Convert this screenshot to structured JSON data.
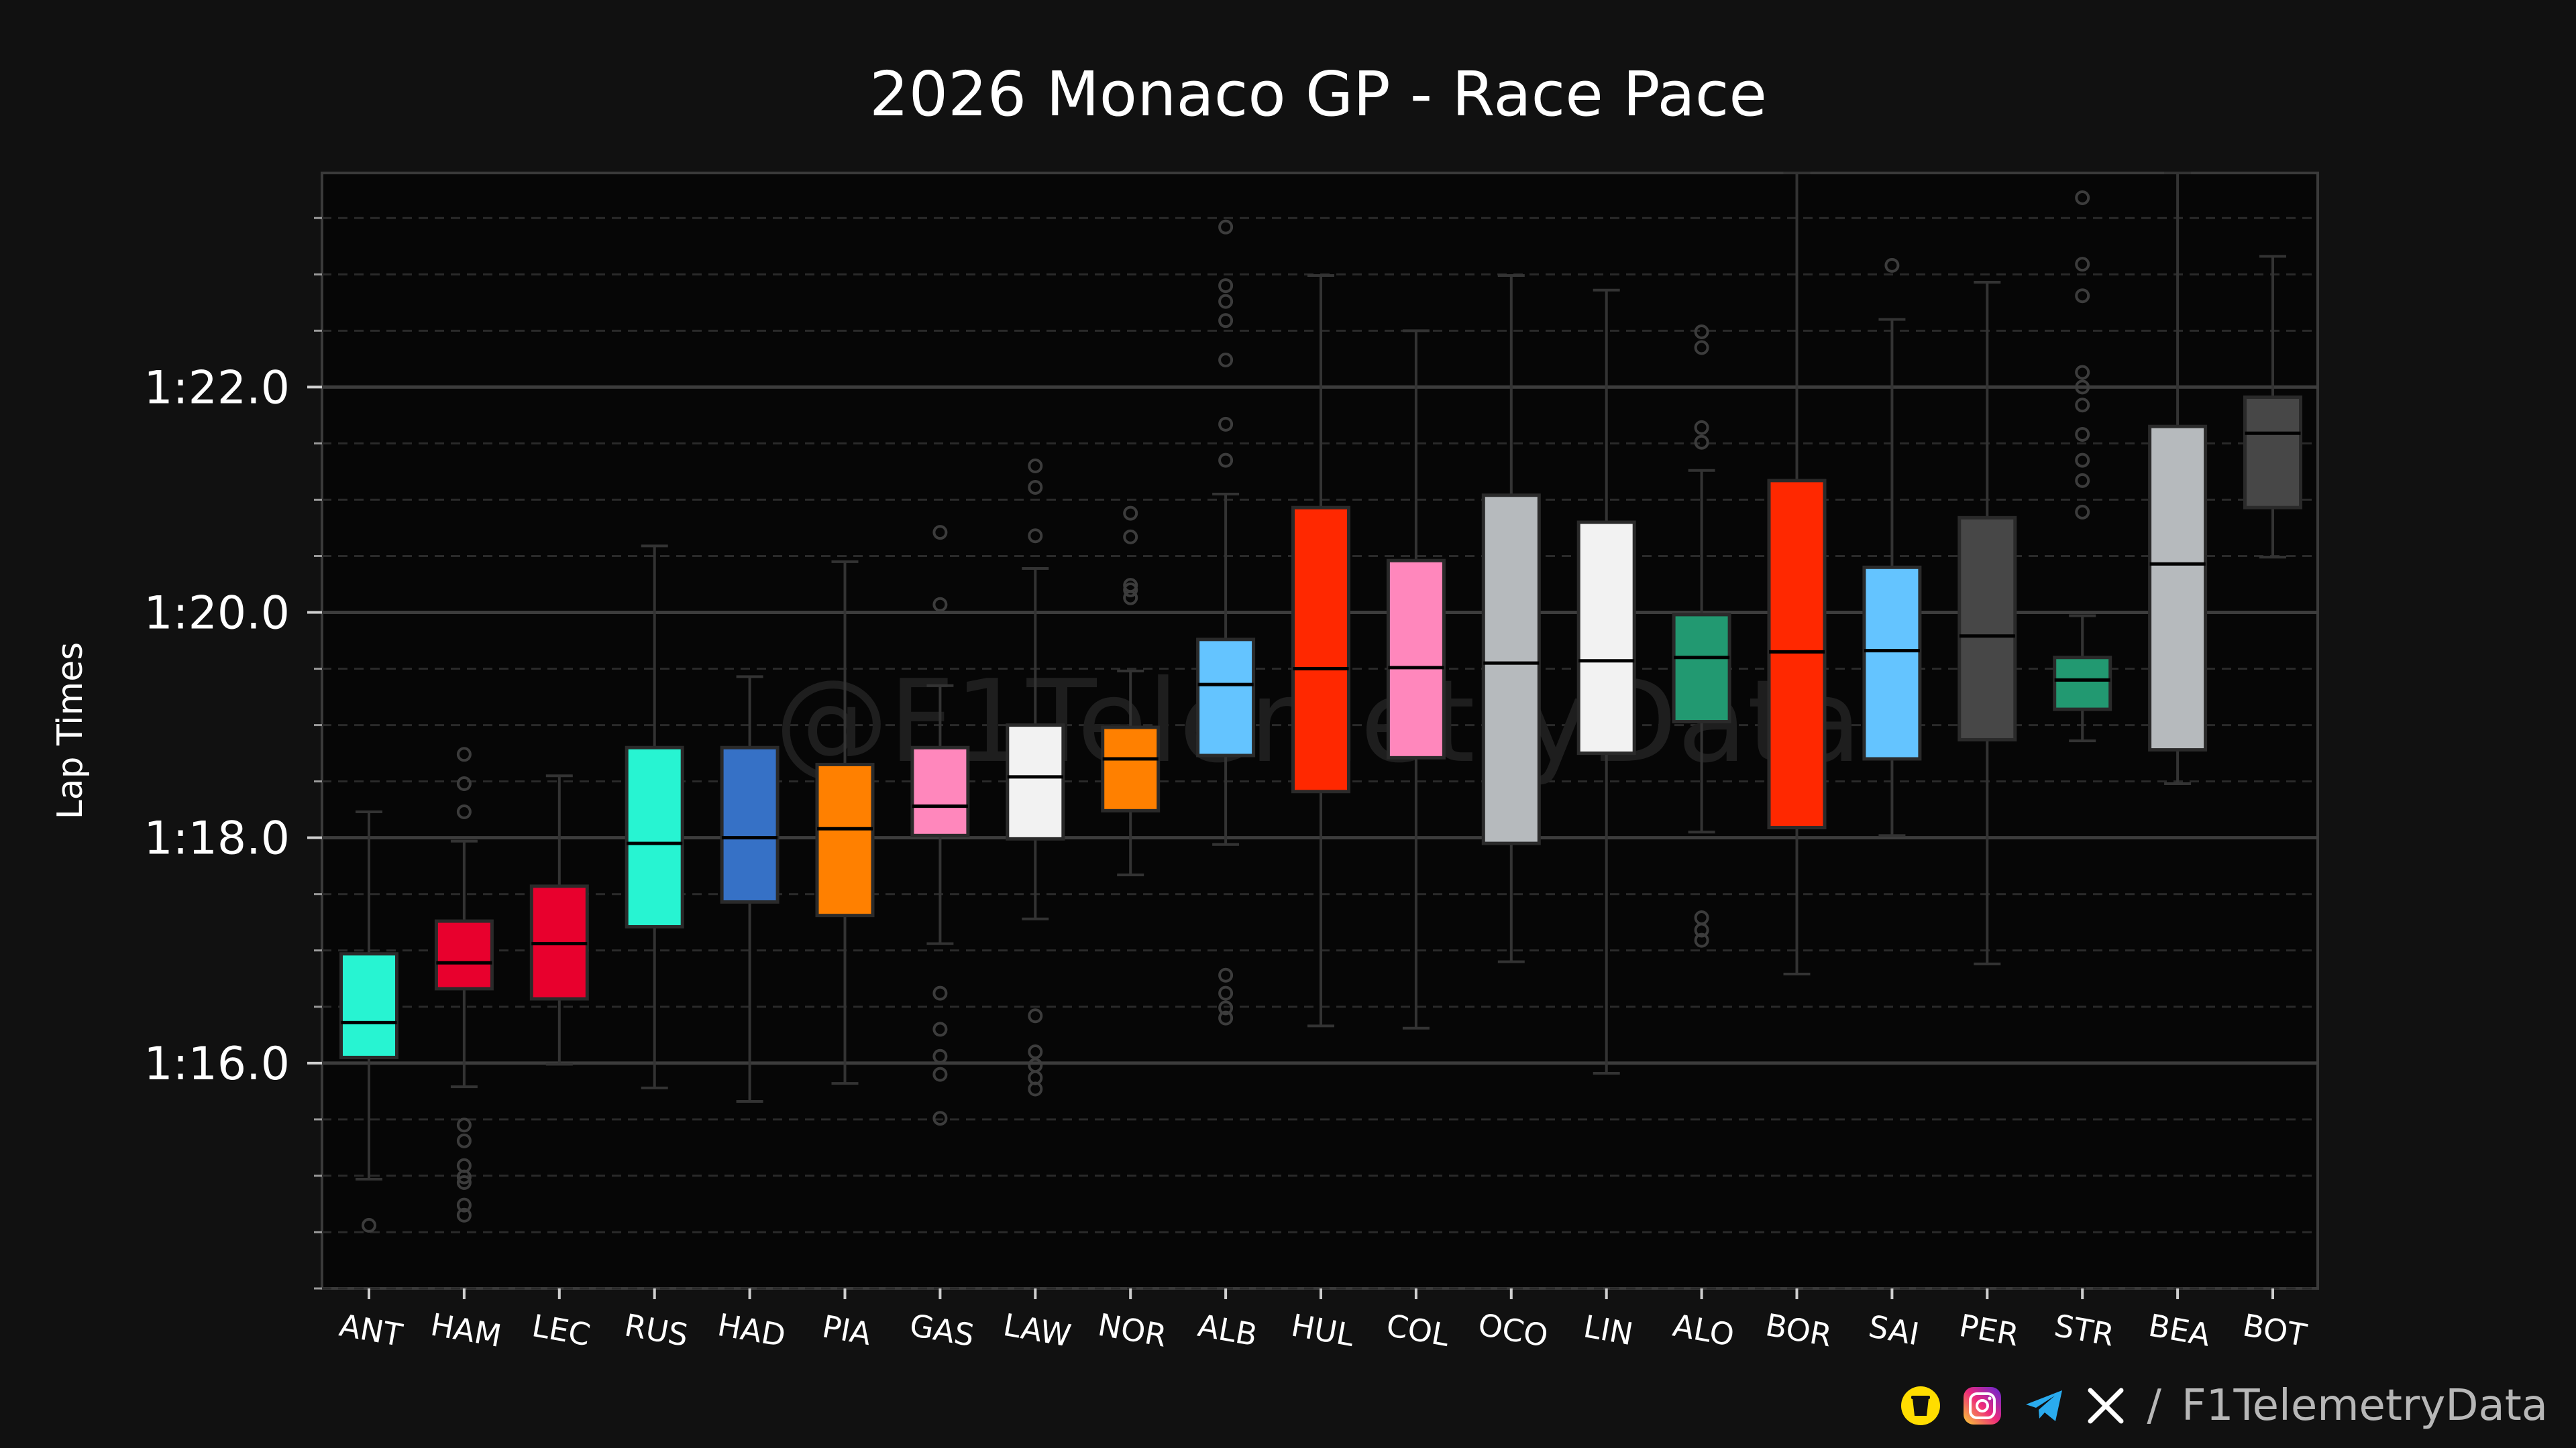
{
  "chart_data": {
    "type": "box",
    "title": "2026 Monaco GP - Race Pace",
    "xlabel": "",
    "ylabel": "Lap Times",
    "y_unit": "seconds",
    "y_ticks": [
      76,
      78,
      80,
      82
    ],
    "y_tick_labels": [
      "1:16.0",
      "1:18.0",
      "1:20.0",
      "1:22.0"
    ],
    "ylim": [
      74.0,
      83.9
    ],
    "grid": true,
    "watermark": "@F1TelemetryData",
    "drivers": [
      {
        "code": "ANT",
        "color": "#27F4D2",
        "q1": 76.05,
        "median": 76.36,
        "q3": 76.97,
        "whisker_low": 74.97,
        "whisker_high": 78.23,
        "outliers": [
          74.56
        ]
      },
      {
        "code": "HAM",
        "color": "#E8002D",
        "q1": 76.66,
        "median": 76.89,
        "q3": 77.26,
        "whisker_low": 75.79,
        "whisker_high": 77.97,
        "outliers": [
          78.23,
          78.48,
          78.74,
          75.45,
          75.31,
          75.09,
          74.99,
          74.94,
          74.74,
          74.65
        ]
      },
      {
        "code": "LEC",
        "color": "#E8002D",
        "q1": 76.57,
        "median": 77.06,
        "q3": 77.57,
        "whisker_low": 75.99,
        "whisker_high": 78.55,
        "outliers": []
      },
      {
        "code": "RUS",
        "color": "#27F4D2",
        "q1": 77.21,
        "median": 77.95,
        "q3": 78.8,
        "whisker_low": 75.78,
        "whisker_high": 80.59,
        "outliers": []
      },
      {
        "code": "HAD",
        "color": "#3671C6",
        "q1": 77.43,
        "median": 78.0,
        "q3": 78.8,
        "whisker_low": 75.66,
        "whisker_high": 79.43,
        "outliers": []
      },
      {
        "code": "PIA",
        "color": "#FF8000",
        "q1": 77.31,
        "median": 78.08,
        "q3": 78.65,
        "whisker_low": 75.82,
        "whisker_high": 80.45,
        "outliers": []
      },
      {
        "code": "GAS",
        "color": "#FF87BC",
        "q1": 78.02,
        "median": 78.28,
        "q3": 78.8,
        "whisker_low": 77.06,
        "whisker_high": 79.35,
        "outliers": [
          80.71,
          80.07,
          76.62,
          76.3,
          76.06,
          75.9,
          75.51
        ]
      },
      {
        "code": "LAW",
        "color": "#F2F2F2",
        "q1": 77.99,
        "median": 78.54,
        "q3": 79.0,
        "whisker_low": 77.28,
        "whisker_high": 80.39,
        "outliers": [
          81.3,
          81.11,
          80.68,
          76.42,
          76.1,
          75.98,
          75.87,
          75.77
        ]
      },
      {
        "code": "NOR",
        "color": "#FF8000",
        "q1": 78.24,
        "median": 78.7,
        "q3": 78.98,
        "whisker_low": 77.67,
        "whisker_high": 79.48,
        "outliers": [
          80.88,
          80.67,
          80.24,
          80.2,
          80.13
        ]
      },
      {
        "code": "ALB",
        "color": "#64C4FF",
        "q1": 78.73,
        "median": 79.36,
        "q3": 79.76,
        "whisker_low": 77.94,
        "whisker_high": 81.05,
        "outliers": [
          83.42,
          82.9,
          82.76,
          82.59,
          82.24,
          81.67,
          81.35,
          76.78,
          76.62,
          76.49,
          76.4
        ]
      },
      {
        "code": "HUL",
        "color": "#FF2800",
        "q1": 78.41,
        "median": 79.5,
        "q3": 80.93,
        "whisker_low": 76.33,
        "whisker_high": 82.99,
        "outliers": []
      },
      {
        "code": "COL",
        "color": "#FF87BC",
        "q1": 78.71,
        "median": 79.51,
        "q3": 80.46,
        "whisker_low": 76.31,
        "whisker_high": 82.5,
        "outliers": []
      },
      {
        "code": "OCO",
        "color": "#B6BABD",
        "q1": 77.95,
        "median": 79.55,
        "q3": 81.04,
        "whisker_low": 76.9,
        "whisker_high": 82.99,
        "outliers": []
      },
      {
        "code": "LIN",
        "color": "#F2F2F2",
        "q1": 78.75,
        "median": 79.57,
        "q3": 80.8,
        "whisker_low": 75.91,
        "whisker_high": 82.86,
        "outliers": []
      },
      {
        "code": "ALO",
        "color": "#229971",
        "q1": 79.03,
        "median": 79.6,
        "q3": 79.98,
        "whisker_low": 78.05,
        "whisker_high": 81.26,
        "outliers": [
          82.49,
          82.35,
          81.64,
          81.51,
          77.29,
          77.18,
          77.09
        ]
      },
      {
        "code": "BOR",
        "color": "#FF2800",
        "q1": 78.09,
        "median": 79.65,
        "q3": 81.17,
        "whisker_low": 76.79,
        "whisker_high": 83.9,
        "outliers": []
      },
      {
        "code": "SAI",
        "color": "#64C4FF",
        "q1": 78.7,
        "median": 79.66,
        "q3": 80.4,
        "whisker_low": 78.02,
        "whisker_high": 82.6,
        "outliers": [
          83.08
        ]
      },
      {
        "code": "PER",
        "color": "#474747",
        "q1": 78.87,
        "median": 79.79,
        "q3": 80.84,
        "whisker_low": 76.88,
        "whisker_high": 82.93,
        "outliers": []
      },
      {
        "code": "STR",
        "color": "#229971",
        "q1": 79.14,
        "median": 79.4,
        "q3": 79.6,
        "whisker_low": 78.86,
        "whisker_high": 79.97,
        "outliers": [
          83.68,
          83.09,
          82.81,
          82.13,
          82.0,
          81.84,
          81.58,
          81.35,
          81.17,
          80.89
        ]
      },
      {
        "code": "BEA",
        "color": "#B6BABD",
        "q1": 78.78,
        "median": 80.43,
        "q3": 81.65,
        "whisker_low": 78.48,
        "whisker_high": 83.9,
        "outliers": []
      },
      {
        "code": "BOT",
        "color": "#474747",
        "q1": 80.93,
        "median": 81.59,
        "q3": 81.91,
        "whisker_low": 80.49,
        "whisker_high": 83.16,
        "outliers": []
      }
    ]
  },
  "footer": {
    "separator": "/",
    "handle": "F1TelemetryData",
    "icons": [
      "buymeacoffee-icon",
      "instagram-icon",
      "telegram-icon",
      "x-icon"
    ]
  }
}
